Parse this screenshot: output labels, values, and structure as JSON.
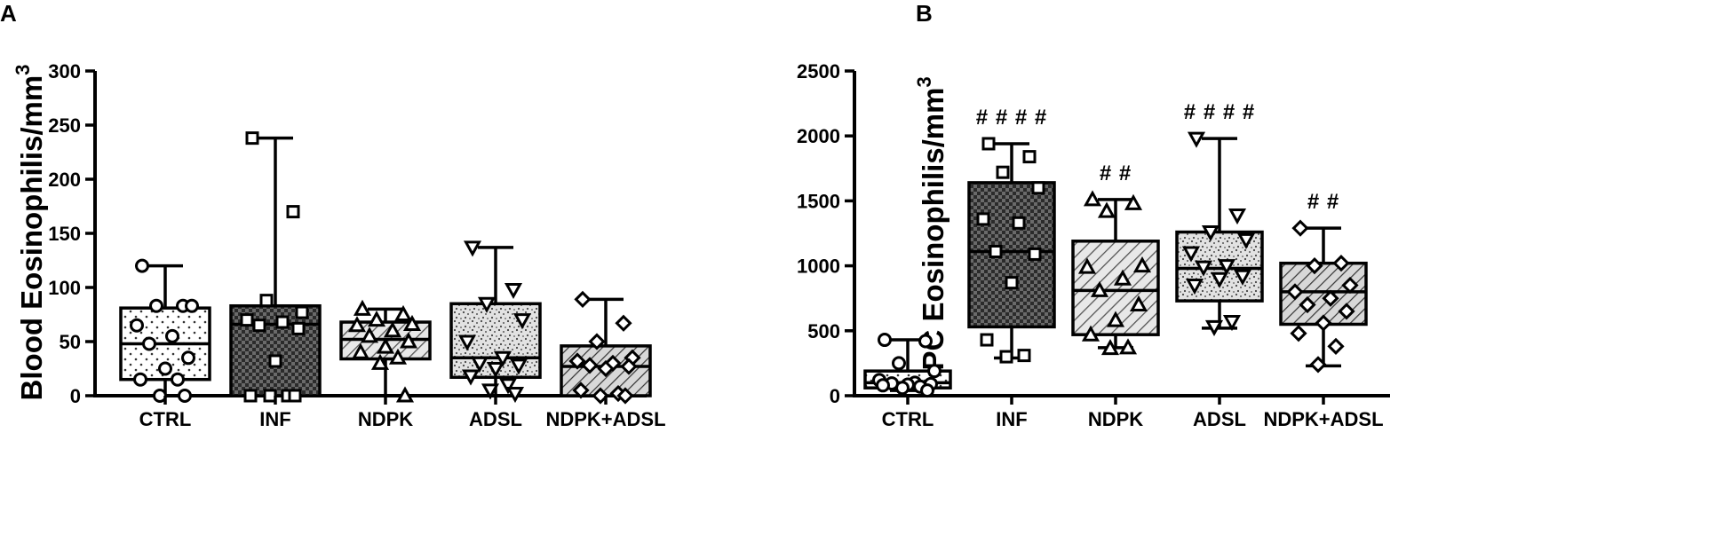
{
  "chart_data": [
    {
      "type": "box",
      "panel_label": "A",
      "ylabel": "Blood Eosinophilis/mm",
      "ylabel_sup": "3",
      "xlabel": "",
      "ylim": [
        0,
        300
      ],
      "yticks": [
        0,
        50,
        100,
        150,
        200,
        250,
        300
      ],
      "categories": [
        "CTRL",
        "INF",
        "NDPK",
        "ADSL",
        "NDPK+ADSL"
      ],
      "groups": [
        {
          "name": "CTRL",
          "min": 0,
          "q1": 15,
          "median": 48,
          "q3": 81,
          "max": 120,
          "marker": "circle",
          "pattern": "dots",
          "points": [
            120,
            83,
            83,
            83,
            65,
            55,
            48,
            35,
            25,
            15,
            15,
            0,
            0
          ]
        },
        {
          "name": "INF",
          "min": 0,
          "q1": 0,
          "median": 66,
          "q3": 83,
          "max": 238,
          "marker": "square",
          "pattern": "checker",
          "points": [
            238,
            170,
            88,
            77,
            70,
            68,
            65,
            62,
            32,
            0,
            0,
            0,
            0
          ]
        },
        {
          "name": "NDPK",
          "min": 0,
          "q1": 34,
          "median": 52,
          "q3": 68,
          "max": 80,
          "marker": "triangle-up",
          "pattern": "hatch",
          "points": [
            80,
            75,
            70,
            66,
            65,
            60,
            55,
            50,
            45,
            40,
            35,
            30,
            0
          ]
        },
        {
          "name": "ADSL",
          "min": 0,
          "q1": 17,
          "median": 35,
          "q3": 85,
          "max": 137,
          "marker": "triangle-down",
          "pattern": "speckle",
          "points": [
            137,
            98,
            85,
            70,
            50,
            35,
            30,
            28,
            25,
            18,
            10,
            5,
            2
          ]
        },
        {
          "name": "NDPK+ADSL",
          "min": 0,
          "q1": 0,
          "median": 27,
          "q3": 46,
          "max": 89,
          "marker": "diamond",
          "pattern": "diag-dense",
          "points": [
            89,
            67,
            50,
            35,
            32,
            30,
            28,
            27,
            25,
            5,
            2,
            0,
            0
          ]
        }
      ],
      "annotations": []
    },
    {
      "type": "box",
      "panel_label": "B",
      "ylabel": "LPC Eosinophilis/mm",
      "ylabel_sup": "3",
      "xlabel": "",
      "ylim": [
        0,
        2500
      ],
      "yticks": [
        0,
        500,
        1000,
        1500,
        2000,
        2500
      ],
      "categories": [
        "CTRL",
        "INF",
        "NDPK",
        "ADSL",
        "NDPK+ADSL"
      ],
      "groups": [
        {
          "name": "CTRL",
          "min": 40,
          "q1": 60,
          "median": 100,
          "q3": 190,
          "max": 430,
          "marker": "circle",
          "pattern": "dots",
          "points": [
            430,
            420,
            250,
            190,
            120,
            100,
            95,
            90,
            85,
            80,
            70,
            60,
            40
          ]
        },
        {
          "name": "INF",
          "min": 290,
          "q1": 530,
          "median": 1110,
          "q3": 1640,
          "max": 1940,
          "marker": "square",
          "pattern": "checker",
          "points": [
            1940,
            1840,
            1720,
            1600,
            1360,
            1330,
            1110,
            1090,
            870,
            430,
            310,
            300
          ]
        },
        {
          "name": "NDPK",
          "min": 370,
          "q1": 470,
          "median": 810,
          "q3": 1190,
          "max": 1510,
          "marker": "triangle-up",
          "pattern": "hatch",
          "points": [
            1510,
            1480,
            1420,
            1000,
            990,
            900,
            810,
            700,
            580,
            470,
            370,
            365
          ]
        },
        {
          "name": "ADSL",
          "min": 520,
          "q1": 730,
          "median": 980,
          "q3": 1260,
          "max": 1980,
          "marker": "triangle-down",
          "pattern": "speckle",
          "points": [
            1980,
            1390,
            1260,
            1200,
            1100,
            1000,
            990,
            920,
            900,
            850,
            570,
            530
          ]
        },
        {
          "name": "NDPK+ADSL",
          "min": 230,
          "q1": 550,
          "median": 800,
          "q3": 1020,
          "max": 1290,
          "marker": "diamond",
          "pattern": "diag-dense",
          "points": [
            1290,
            1020,
            1000,
            850,
            800,
            750,
            700,
            650,
            560,
            480,
            380,
            240
          ]
        }
      ],
      "annotations": [
        {
          "category": "INF",
          "text": "# # # #"
        },
        {
          "category": "NDPK",
          "text": "# #"
        },
        {
          "category": "ADSL",
          "text": "# # # #"
        },
        {
          "category": "NDPK+ADSL",
          "text": "# #"
        }
      ]
    }
  ]
}
